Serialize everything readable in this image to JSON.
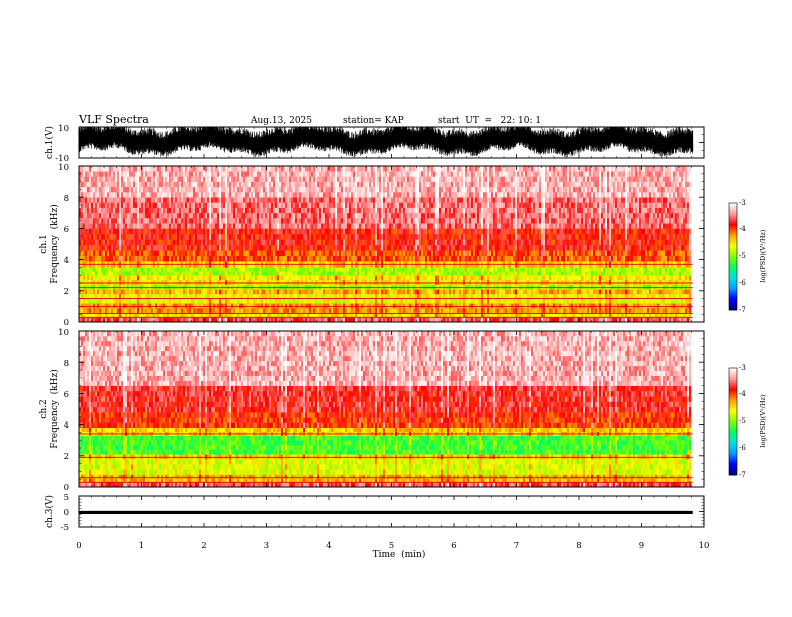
{
  "header": {
    "title": "VLF Spectra",
    "date": "Aug.13, 2025",
    "station": "station= KAP",
    "start": "start  UT  =   22: 10: 1"
  },
  "colors": {
    "spectrum_scale": [
      "#000080",
      "#0000ff",
      "#00a0ff",
      "#00e0e0",
      "#00ff60",
      "#80ff00",
      "#ffff00",
      "#ffa000",
      "#ff0000",
      "#ff9a9a",
      "#ffffff"
    ]
  },
  "chart_data": [
    {
      "type": "line",
      "name": "channel-1-waveform",
      "ylabel": "ch.1(V)",
      "y_ticks": [
        "10",
        "-10"
      ],
      "ylim": [
        -10,
        10
      ],
      "xlim": [
        0,
        10
      ],
      "x_max_data": 9.82,
      "description_level": "dense noise signal filling approx. -6 to +10 V"
    },
    {
      "type": "heatmap",
      "name": "channel-1-spectrogram",
      "ylabel_line1": "ch.1",
      "ylabel_line2": "Frequency  (kHz)",
      "y_ticks": [
        "0",
        "2",
        "4",
        "6",
        "8",
        "10"
      ],
      "ylim": [
        0,
        10
      ],
      "xlim": [
        0,
        10
      ],
      "x_max_data": 9.82,
      "bands_khz": [
        {
          "from": 0.0,
          "to": 0.3,
          "level": -3.6
        },
        {
          "from": 0.3,
          "to": 0.6,
          "level": -4.5
        },
        {
          "from": 0.6,
          "to": 1.2,
          "level": -4.2
        },
        {
          "from": 1.2,
          "to": 1.8,
          "level": -4.6
        },
        {
          "from": 1.8,
          "to": 2.1,
          "level": -4.3
        },
        {
          "from": 2.1,
          "to": 2.4,
          "level": -4.9
        },
        {
          "from": 2.4,
          "to": 3.0,
          "level": -4.5
        },
        {
          "from": 3.0,
          "to": 3.5,
          "level": -4.9
        },
        {
          "from": 3.5,
          "to": 3.9,
          "level": -4.4
        },
        {
          "from": 3.9,
          "to": 4.6,
          "level": -4.0
        },
        {
          "from": 4.6,
          "to": 6.0,
          "level": -3.8
        },
        {
          "from": 6.0,
          "to": 8.0,
          "level": -3.5
        },
        {
          "from": 8.0,
          "to": 10.0,
          "level": -3.3
        }
      ],
      "lines_khz": [
        0.3,
        0.55,
        1.0,
        1.5,
        2.2,
        2.5,
        3.7
      ]
    },
    {
      "type": "heatmap",
      "name": "channel-2-spectrogram",
      "ylabel_line1": "ch.2",
      "ylabel_line2": "Frequency  (kHz)",
      "y_ticks": [
        "0",
        "2",
        "4",
        "6",
        "8",
        "10"
      ],
      "ylim": [
        0,
        10
      ],
      "xlim": [
        0,
        10
      ],
      "x_max_data": 9.82,
      "bands_khz": [
        {
          "from": 0.0,
          "to": 0.3,
          "level": -3.6
        },
        {
          "from": 0.3,
          "to": 0.8,
          "level": -4.3
        },
        {
          "from": 0.8,
          "to": 1.8,
          "level": -4.7
        },
        {
          "from": 1.8,
          "to": 2.1,
          "level": -4.4
        },
        {
          "from": 2.1,
          "to": 3.3,
          "level": -5.2
        },
        {
          "from": 3.3,
          "to": 3.8,
          "level": -4.4
        },
        {
          "from": 3.8,
          "to": 4.8,
          "level": -3.9
        },
        {
          "from": 4.8,
          "to": 6.5,
          "level": -3.7
        },
        {
          "from": 6.5,
          "to": 10.0,
          "level": -3.3
        }
      ],
      "lines_khz": [
        0.3,
        0.6,
        1.9,
        3.4
      ]
    },
    {
      "type": "line",
      "name": "channel-3-waveform",
      "ylabel": "ch.3(V)",
      "y_ticks": [
        "5",
        "0",
        "-5"
      ],
      "ylim": [
        -5,
        5
      ],
      "xlim": [
        0,
        10
      ],
      "x_max_data": 9.82,
      "band": [
        -0.8,
        0.2
      ]
    }
  ],
  "time_axis": {
    "label": "Time  (min)",
    "ticks": [
      "0",
      "1",
      "2",
      "3",
      "4",
      "5",
      "6",
      "7",
      "8",
      "9",
      "10"
    ]
  },
  "colorbars": [
    {
      "name": "colorbar-ch1",
      "label": "log(PSD)(V²/Hz)",
      "ticks": [
        "-3",
        "-4",
        "-5",
        "-6",
        "-7"
      ],
      "range": [
        -7,
        -3
      ]
    },
    {
      "name": "colorbar-ch2",
      "label": "log(PSD)(V²/Hz)",
      "ticks": [
        "-3",
        "-4",
        "-5",
        "-6",
        "-7"
      ],
      "range": [
        -7,
        -3
      ]
    }
  ]
}
